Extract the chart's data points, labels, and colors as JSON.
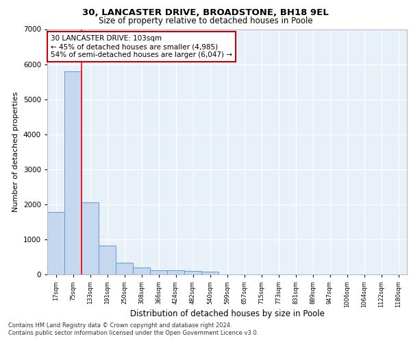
{
  "title_line1": "30, LANCASTER DRIVE, BROADSTONE, BH18 9EL",
  "title_line2": "Size of property relative to detached houses in Poole",
  "xlabel": "Distribution of detached houses by size in Poole",
  "ylabel": "Number of detached properties",
  "bin_labels": [
    "17sqm",
    "75sqm",
    "133sqm",
    "191sqm",
    "250sqm",
    "308sqm",
    "366sqm",
    "424sqm",
    "482sqm",
    "540sqm",
    "599sqm",
    "657sqm",
    "715sqm",
    "773sqm",
    "831sqm",
    "889sqm",
    "947sqm",
    "1006sqm",
    "1064sqm",
    "1122sqm",
    "1180sqm"
  ],
  "bar_values": [
    1780,
    5800,
    2060,
    820,
    340,
    190,
    120,
    110,
    100,
    75,
    0,
    0,
    0,
    0,
    0,
    0,
    0,
    0,
    0,
    0,
    0
  ],
  "bar_color": "#c5d8f0",
  "bar_edge_color": "#6699cc",
  "red_line_bin_index": 2,
  "annotation_text": "30 LANCASTER DRIVE: 103sqm\n← 45% of detached houses are smaller (4,985)\n54% of semi-detached houses are larger (6,047) →",
  "annotation_box_color": "#ffffff",
  "annotation_box_edge": "#cc0000",
  "ylim": [
    0,
    7000
  ],
  "yticks": [
    0,
    1000,
    2000,
    3000,
    4000,
    5000,
    6000,
    7000
  ],
  "footnote1": "Contains HM Land Registry data © Crown copyright and database right 2024.",
  "footnote2": "Contains public sector information licensed under the Open Government Licence v3.0.",
  "background_color": "#e8f0fa",
  "grid_color": "#ffffff"
}
